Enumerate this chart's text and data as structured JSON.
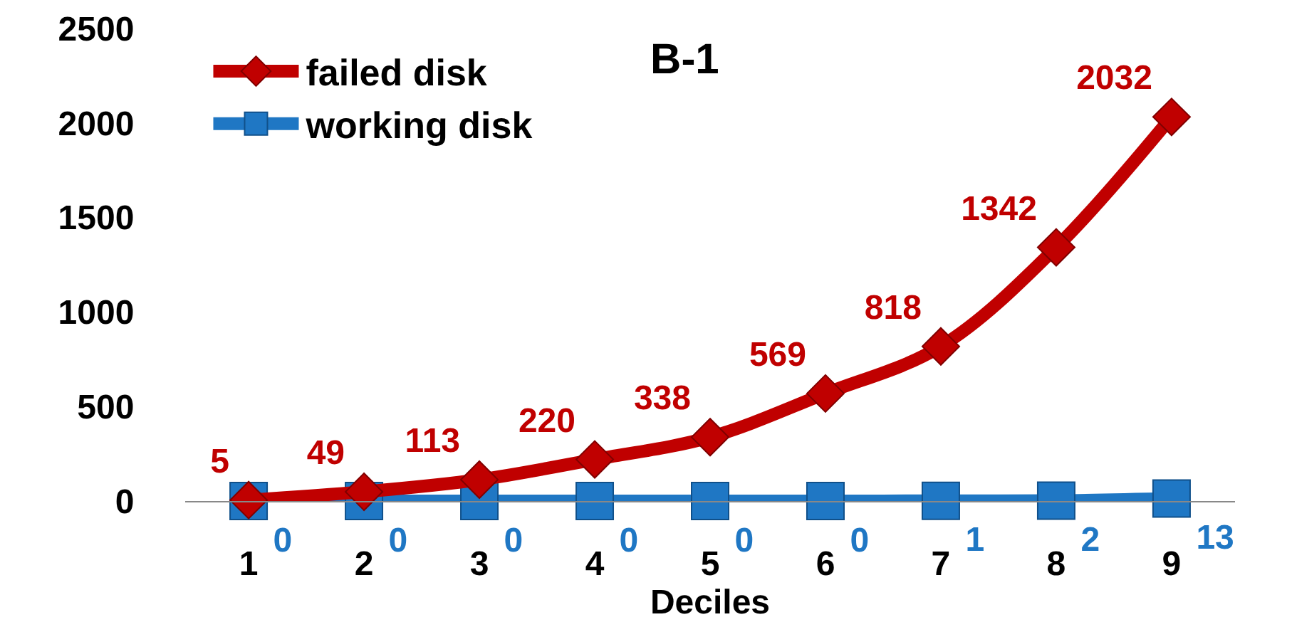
{
  "chart_data": {
    "type": "line",
    "title": "B-1",
    "xlabel": "Deciles",
    "categories": [
      "1",
      "2",
      "3",
      "4",
      "5",
      "6",
      "7",
      "8",
      "9"
    ],
    "series": [
      {
        "name": "failed disk",
        "color": "#c00000",
        "marker": "diamond",
        "values": [
          5,
          49,
          113,
          220,
          338,
          569,
          818,
          1342,
          2032
        ]
      },
      {
        "name": "working disk",
        "color": "#1f77c4",
        "marker": "square",
        "values": [
          0,
          0,
          0,
          0,
          0,
          0,
          1,
          2,
          13
        ]
      }
    ],
    "ylim": [
      0,
      2500
    ],
    "yticks": [
      0,
      500,
      1000,
      1500,
      2000,
      2500
    ],
    "grid": false,
    "legend": "top left",
    "data_labels": true,
    "line_style": "solid"
  }
}
